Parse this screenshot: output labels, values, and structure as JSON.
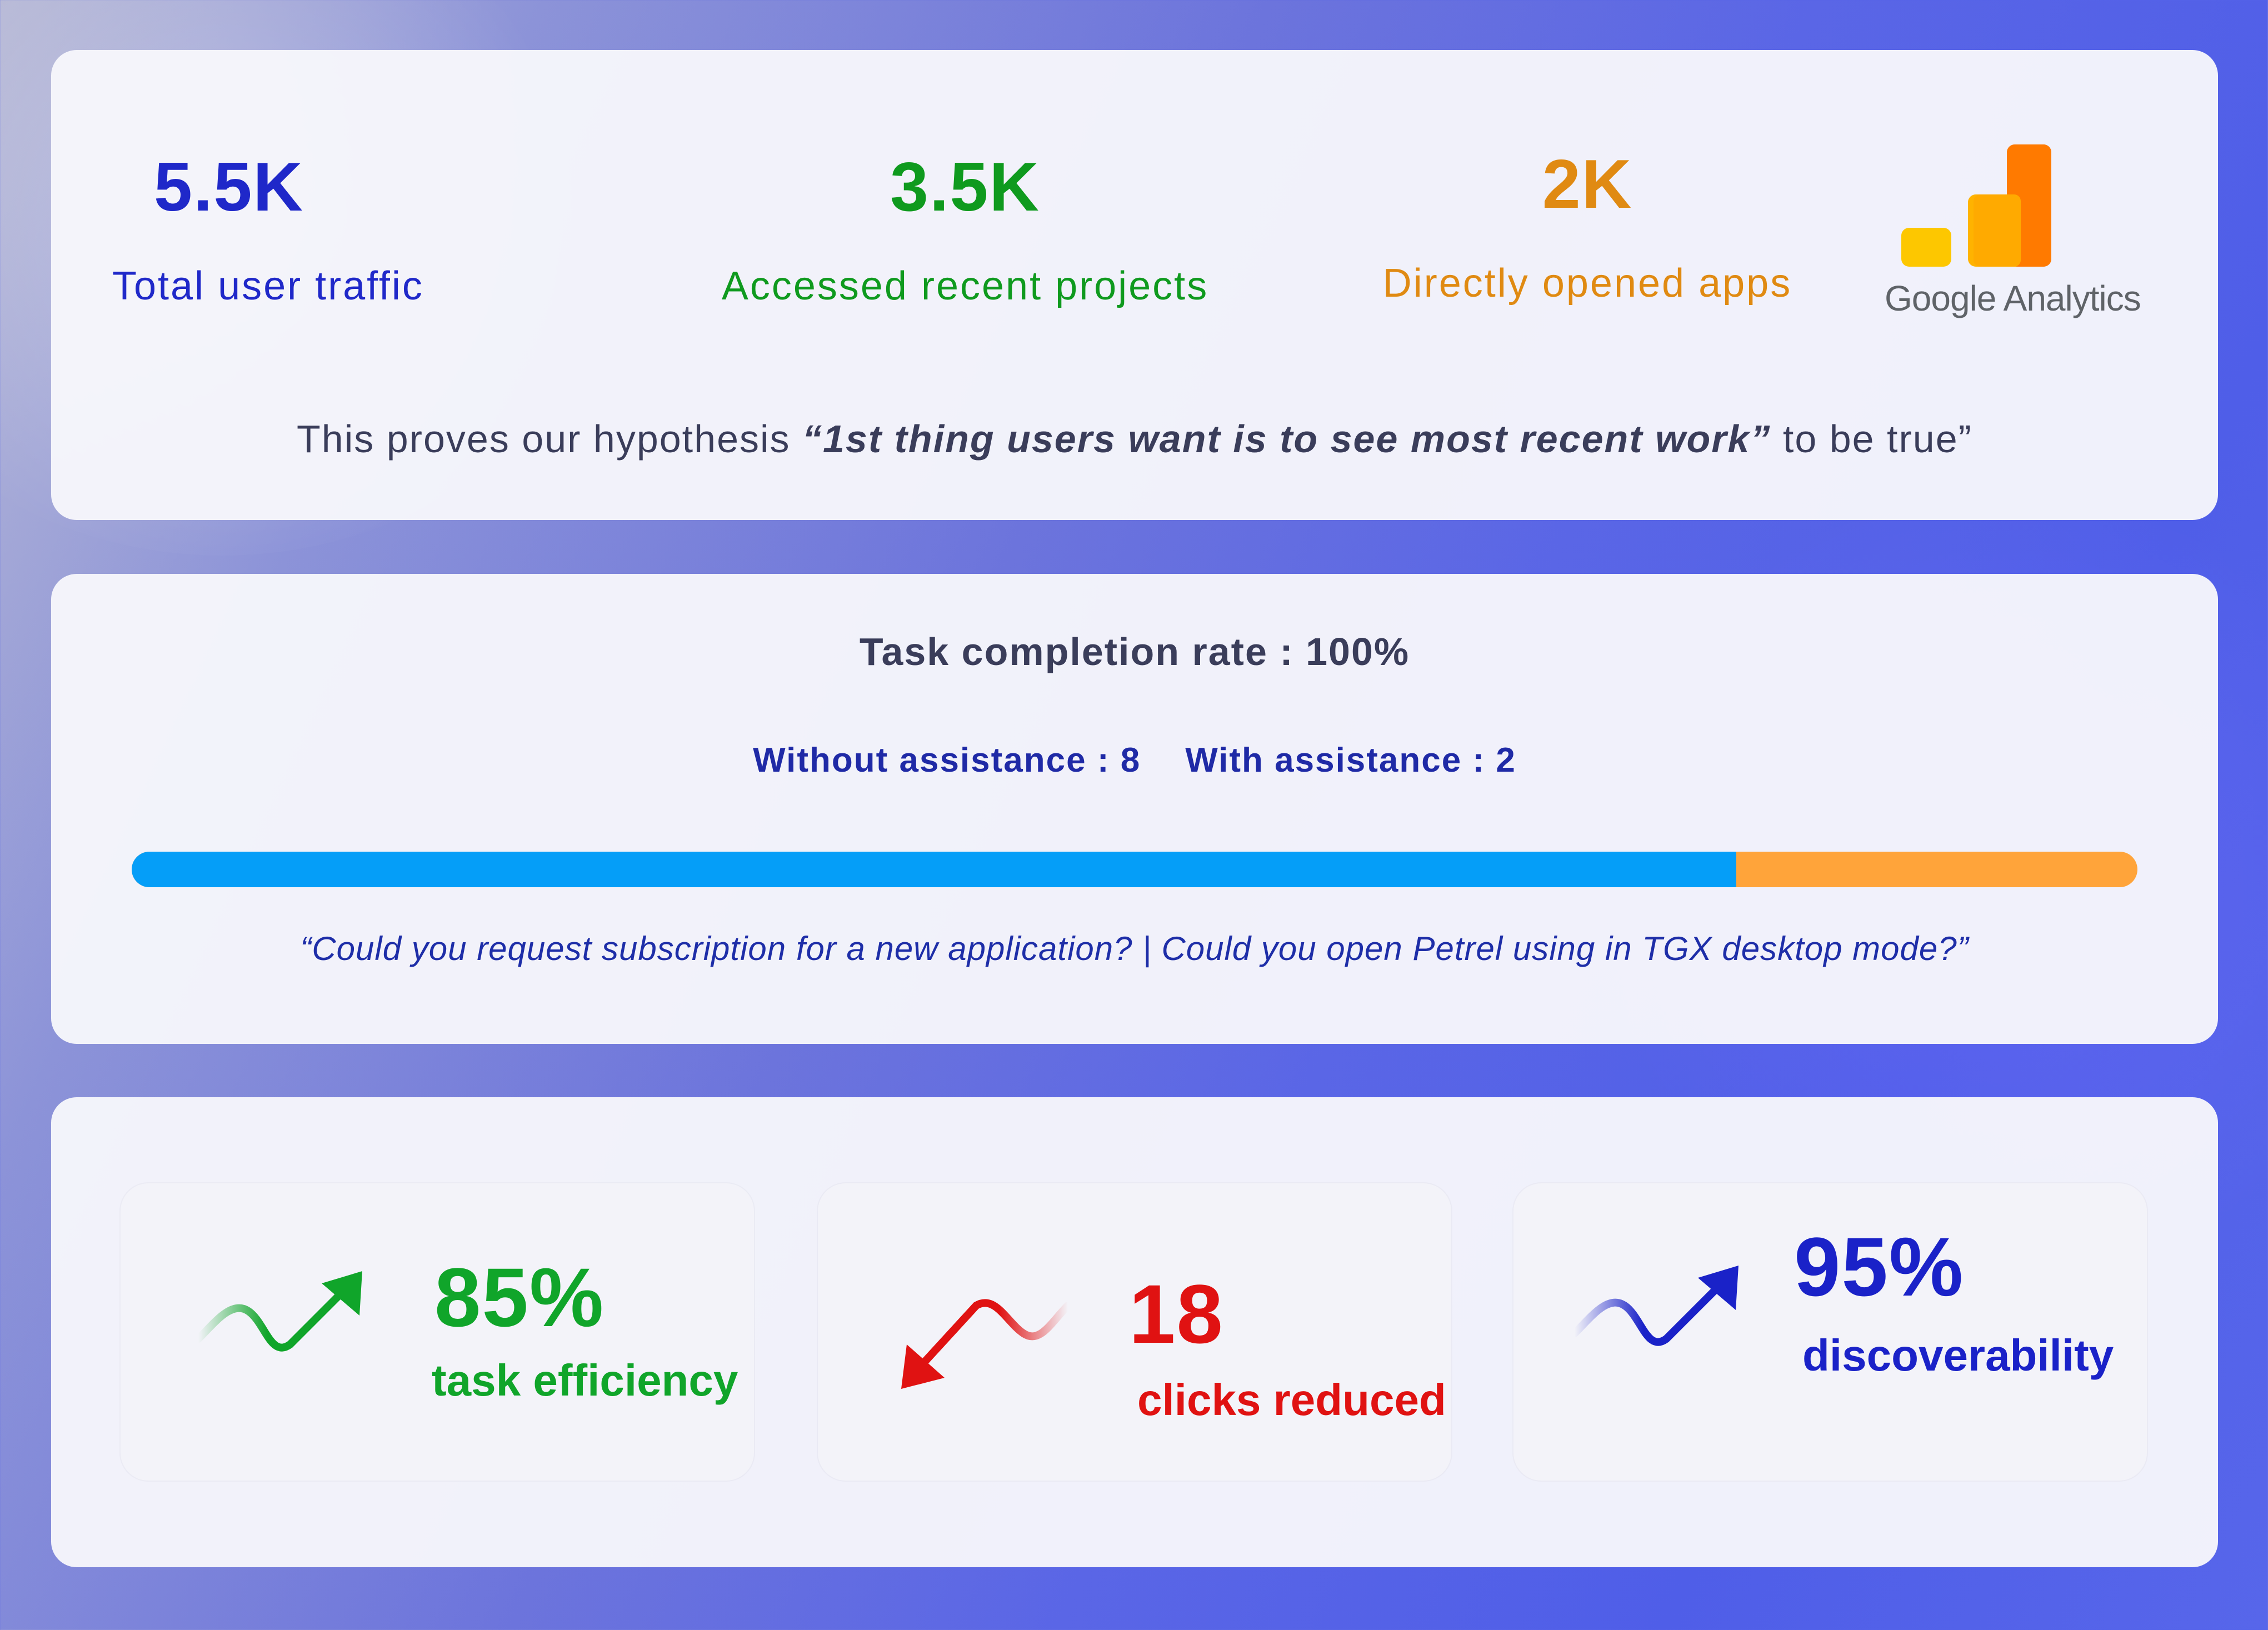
{
  "stats": [
    {
      "value": "5.5K",
      "label": "Total user traffic",
      "color": "#1f28c9"
    },
    {
      "value": "3.5K",
      "label": "Accessed recent projects",
      "color": "#0f9a1e"
    },
    {
      "value": "2K",
      "label": "Directly opened apps",
      "color": "#e08a12"
    }
  ],
  "analytics": {
    "logo_text": "Google Analytics",
    "icon": "google-analytics-icon"
  },
  "hypothesis": {
    "prefix": "This proves our hypothesis ",
    "quote": "“1st thing users want is to see most recent work”",
    "suffix": " to be true”"
  },
  "task": {
    "title": "Task completion rate : 100%",
    "without_assistance": "Without assistance : 8",
    "with_assistance": "With assistance : 2",
    "progress_fraction": 0.8,
    "colors": {
      "without": "#059ef8",
      "with": "#ffa43a"
    },
    "questions": "“Could you request subscription for a new application? | Could you open Petrel using in TGX desktop mode?”"
  },
  "metrics": [
    {
      "value": "85%",
      "label": "task efficiency",
      "color": "#10a52a",
      "icon": "trend-up-arrow-icon"
    },
    {
      "value": "18",
      "label": "clicks reduced",
      "color": "#e01212",
      "icon": "trend-down-arrow-icon"
    },
    {
      "value": "95%",
      "label": "discoverability",
      "color": "#1a22c8",
      "icon": "trend-up-arrow-icon"
    }
  ]
}
